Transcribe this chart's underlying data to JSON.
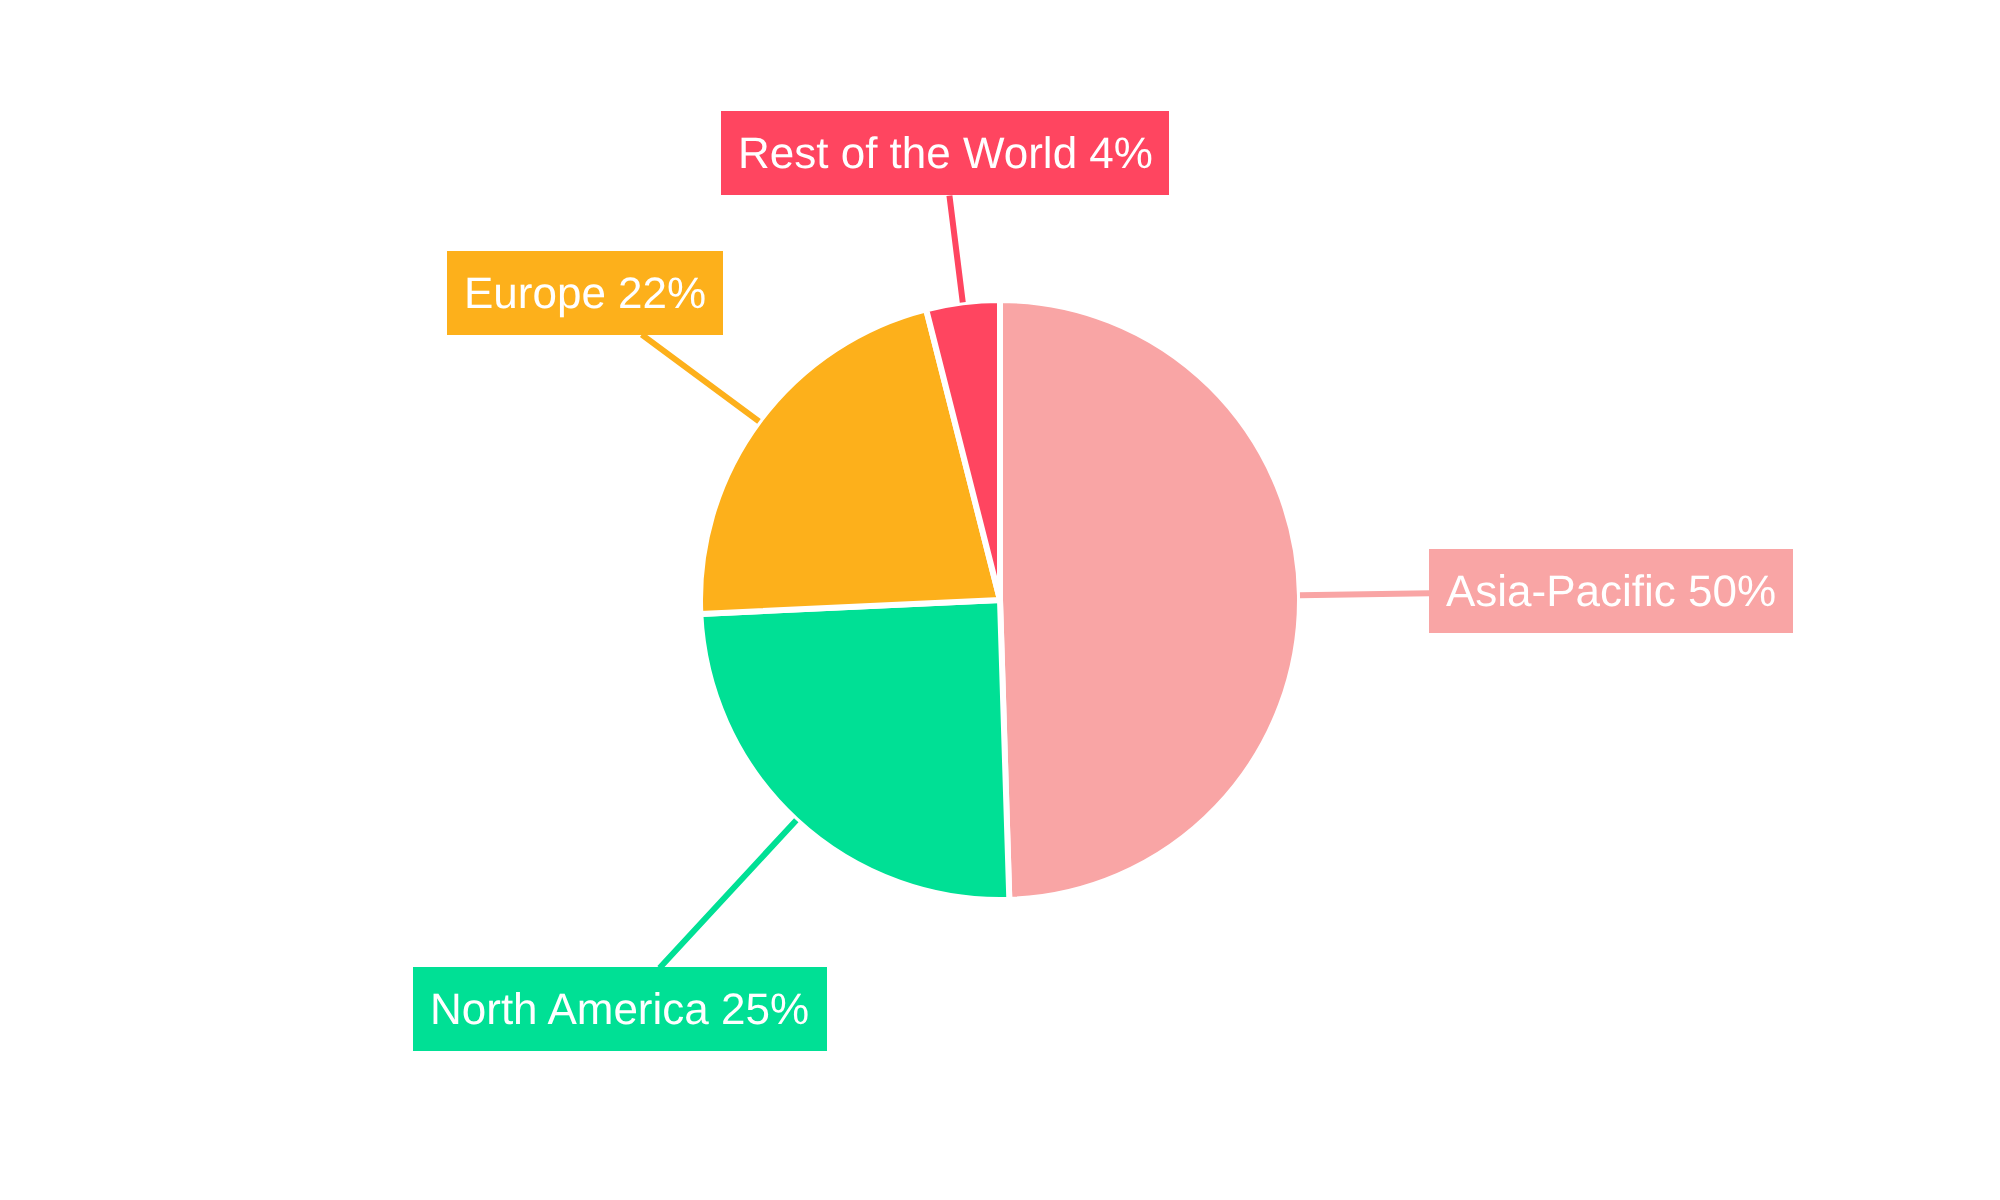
{
  "chart_data": {
    "type": "pie",
    "categories": [
      "Asia-Pacific",
      "North America",
      "Europe",
      "Rest of the World"
    ],
    "values": [
      50,
      25,
      22,
      4
    ],
    "value_labels": [
      "50%",
      "25%",
      "22%",
      "4%"
    ],
    "colors": [
      "#f9a5a5",
      "#00e095",
      "#fdb01b",
      "#ff4560"
    ],
    "legend": false
  }
}
